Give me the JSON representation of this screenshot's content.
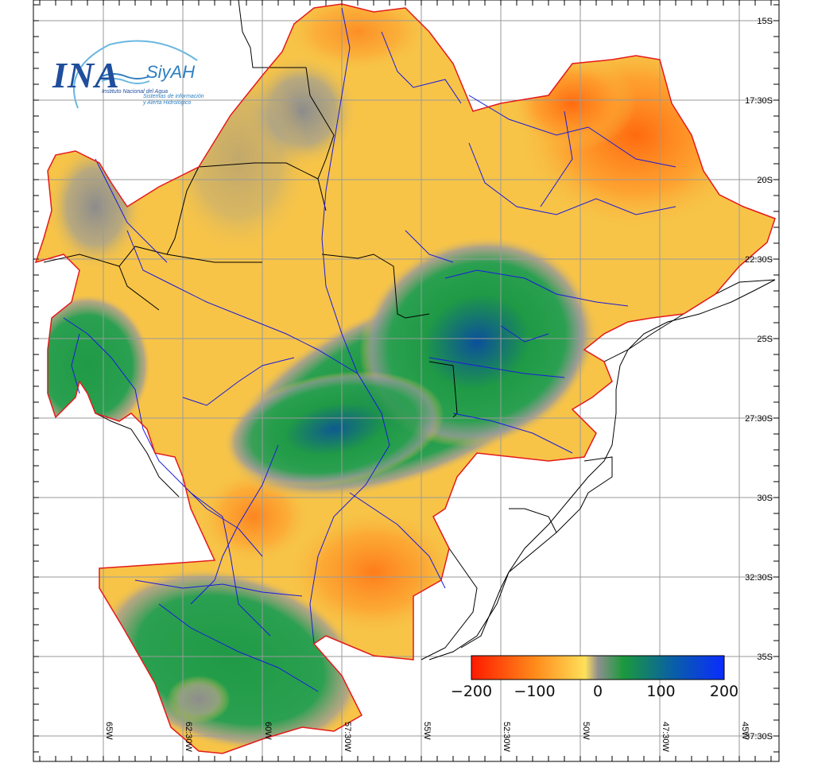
{
  "logo": {
    "acronym": "INA",
    "brand": "SiyAH",
    "institute": "Instituto Nacional del Agua",
    "system_line1": "Sistemas de información",
    "system_line2": "y Alerta Hidrológico"
  },
  "latitude_labels": [
    "15S",
    "17:30S",
    "20S",
    "22:30S",
    "25S",
    "27:30S",
    "30S",
    "32:30S",
    "35S",
    "37:30S"
  ],
  "longitude_labels": [
    "65W",
    "62:30W",
    "60W",
    "57:30W",
    "55W",
    "52:30W",
    "50W",
    "47:30W",
    "45W"
  ],
  "colorbar": {
    "tick_labels": [
      "−200",
      "−100",
      "0",
      "100",
      "200"
    ],
    "min": -200,
    "max": 200,
    "colors": [
      "#ff1a00",
      "#ff8a1a",
      "#ffe05a",
      "#8f8f8f",
      "#1b9a3c",
      "#0a5ea8",
      "#0a2cff"
    ]
  },
  "colors": {
    "anomaly_positive_high": "#0b4f9c",
    "anomaly_positive": "#1f9a45",
    "neutral": "#9a9a9a",
    "anomaly_negative": "#f5c245",
    "anomaly_negative_high": "#ff6e10",
    "basin_outline": "#e31a1c",
    "rivers": "#1a1adc",
    "borders": "#000000",
    "grid": "#9a9a9a"
  }
}
